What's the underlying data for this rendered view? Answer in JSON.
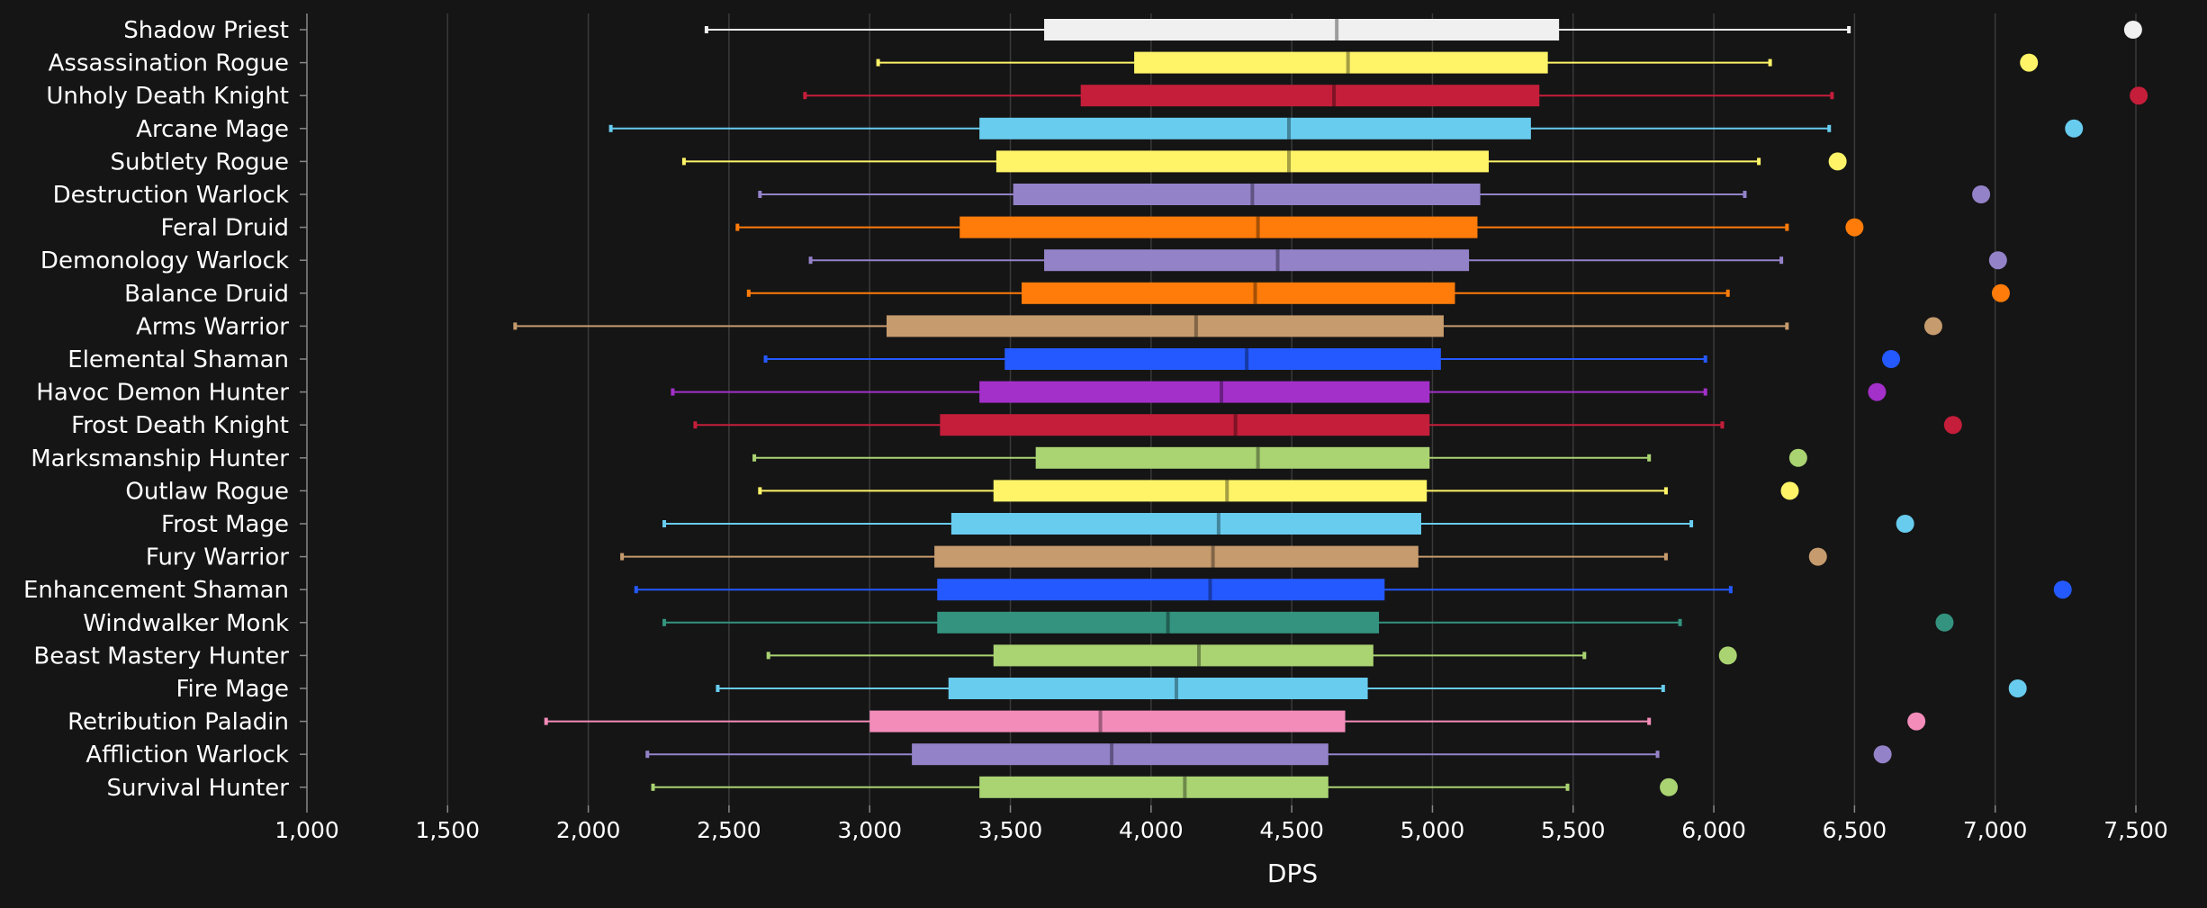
{
  "chart_data": {
    "type": "box",
    "xlabel": "DPS",
    "xlim": [
      1000,
      7500
    ],
    "xticks": [
      1000,
      1500,
      2000,
      2500,
      3000,
      3500,
      4000,
      4500,
      5000,
      5500,
      6000,
      6500,
      7000,
      7500
    ],
    "xtick_labels": [
      "1,000",
      "1,500",
      "2,000",
      "2,500",
      "3,000",
      "3,500",
      "4,000",
      "4,500",
      "5,000",
      "5,500",
      "6,000",
      "6,500",
      "7,000",
      "7,500"
    ],
    "grid": true,
    "series": [
      {
        "name": "Shadow Priest",
        "color": "#F0F0F0",
        "min": 2420,
        "q1": 3620,
        "median": 4660,
        "q3": 5450,
        "max": 6480,
        "top": 7490
      },
      {
        "name": "Assassination Rogue",
        "color": "#FFF468",
        "min": 3030,
        "q1": 3940,
        "median": 4700,
        "q3": 5410,
        "max": 6200,
        "top": 7120
      },
      {
        "name": "Unholy Death Knight",
        "color": "#C41E3A",
        "min": 2770,
        "q1": 3750,
        "median": 4650,
        "q3": 5380,
        "max": 6420,
        "top": 7510
      },
      {
        "name": "Arcane Mage",
        "color": "#68CCEF",
        "min": 2080,
        "q1": 3390,
        "median": 4490,
        "q3": 5350,
        "max": 6410,
        "top": 7280
      },
      {
        "name": "Subtlety Rogue",
        "color": "#FFF468",
        "min": 2340,
        "q1": 3450,
        "median": 4490,
        "q3": 5200,
        "max": 6160,
        "top": 6440
      },
      {
        "name": "Destruction Warlock",
        "color": "#9482C9",
        "min": 2610,
        "q1": 3510,
        "median": 4360,
        "q3": 5170,
        "max": 6110,
        "top": 6950
      },
      {
        "name": "Feral Druid",
        "color": "#FF7C0A",
        "min": 2530,
        "q1": 3320,
        "median": 4380,
        "q3": 5160,
        "max": 6260,
        "top": 6500
      },
      {
        "name": "Demonology Warlock",
        "color": "#9482C9",
        "min": 2790,
        "q1": 3620,
        "median": 4450,
        "q3": 5130,
        "max": 6240,
        "top": 7010
      },
      {
        "name": "Balance Druid",
        "color": "#FF7C0A",
        "min": 2570,
        "q1": 3540,
        "median": 4370,
        "q3": 5080,
        "max": 6050,
        "top": 7020
      },
      {
        "name": "Arms Warrior",
        "color": "#C69B6D",
        "min": 1740,
        "q1": 3060,
        "median": 4160,
        "q3": 5040,
        "max": 6260,
        "top": 6780
      },
      {
        "name": "Elemental Shaman",
        "color": "#2459FF",
        "min": 2630,
        "q1": 3480,
        "median": 4340,
        "q3": 5030,
        "max": 5970,
        "top": 6630
      },
      {
        "name": "Havoc Demon Hunter",
        "color": "#A330C9",
        "min": 2300,
        "q1": 3390,
        "median": 4250,
        "q3": 4990,
        "max": 5970,
        "top": 6580
      },
      {
        "name": "Frost Death Knight",
        "color": "#C41E3A",
        "min": 2380,
        "q1": 3250,
        "median": 4300,
        "q3": 4990,
        "max": 6030,
        "top": 6850
      },
      {
        "name": "Marksmanship Hunter",
        "color": "#AAD372",
        "min": 2590,
        "q1": 3590,
        "median": 4380,
        "q3": 4990,
        "max": 5770,
        "top": 6300
      },
      {
        "name": "Outlaw Rogue",
        "color": "#FFF468",
        "min": 2610,
        "q1": 3440,
        "median": 4270,
        "q3": 4980,
        "max": 5830,
        "top": 6270
      },
      {
        "name": "Frost Mage",
        "color": "#68CCEF",
        "min": 2270,
        "q1": 3290,
        "median": 4240,
        "q3": 4960,
        "max": 5920,
        "top": 6680
      },
      {
        "name": "Fury Warrior",
        "color": "#C69B6D",
        "min": 2120,
        "q1": 3230,
        "median": 4220,
        "q3": 4950,
        "max": 5830,
        "top": 6370
      },
      {
        "name": "Enhancement Shaman",
        "color": "#2459FF",
        "min": 2170,
        "q1": 3240,
        "median": 4210,
        "q3": 4830,
        "max": 6060,
        "top": 7240
      },
      {
        "name": "Windwalker Monk",
        "color": "#33937F",
        "min": 2270,
        "q1": 3240,
        "median": 4060,
        "q3": 4810,
        "max": 5880,
        "top": 6820
      },
      {
        "name": "Beast Mastery Hunter",
        "color": "#AAD372",
        "min": 2640,
        "q1": 3440,
        "median": 4170,
        "q3": 4790,
        "max": 5540,
        "top": 6050
      },
      {
        "name": "Fire Mage",
        "color": "#68CCEF",
        "min": 2460,
        "q1": 3280,
        "median": 4090,
        "q3": 4770,
        "max": 5820,
        "top": 7080
      },
      {
        "name": "Retribution Paladin",
        "color": "#F48CBA",
        "min": 1850,
        "q1": 3000,
        "median": 3820,
        "q3": 4690,
        "max": 5770,
        "top": 6720
      },
      {
        "name": "Affliction Warlock",
        "color": "#9482C9",
        "min": 2210,
        "q1": 3150,
        "median": 3860,
        "q3": 4630,
        "max": 5800,
        "top": 6600
      },
      {
        "name": "Survival Hunter",
        "color": "#AAD372",
        "min": 2230,
        "q1": 3390,
        "median": 4120,
        "q3": 4630,
        "max": 5480,
        "top": 5840
      }
    ]
  }
}
